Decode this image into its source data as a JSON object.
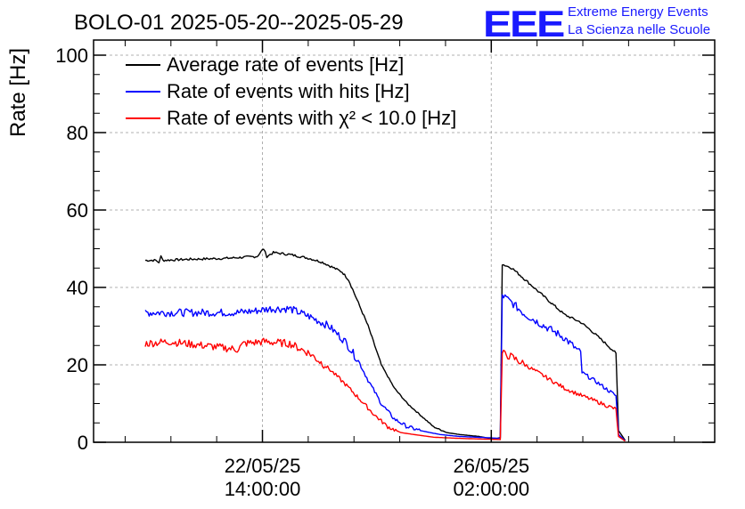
{
  "chart_data": {
    "type": "line",
    "title": "BOLO-01 2025-05-20--2025-05-29",
    "ylabel": "Rate [Hz]",
    "xlabel": "",
    "ylim": [
      0,
      100
    ],
    "xlim": [
      0,
      9.5
    ],
    "x_unit": "days since 2025-05-20 00:00:00",
    "yticks": [
      0,
      20,
      40,
      60,
      80,
      100
    ],
    "ytick_labels": [
      "0",
      "20",
      "40",
      "60",
      "80",
      "100"
    ],
    "xticks": [
      {
        "x": 2.583,
        "label_date": "22/05/25",
        "label_time": "14:00:00"
      },
      {
        "x": 6.083,
        "label_date": "26/05/25",
        "label_time": "02:00:00"
      }
    ],
    "grid": true,
    "legend_position": "top-left",
    "logo": {
      "letters": "EEE",
      "line1": "Extreme Energy Events",
      "line2": "La Scienza nelle Scuole"
    },
    "series": [
      {
        "name": "Average rate of events [Hz]",
        "color": "#000000",
        "points": [
          [
            0.79,
            47
          ],
          [
            0.95,
            47
          ],
          [
            1.0,
            46.5
          ],
          [
            1.03,
            48
          ],
          [
            1.06,
            47
          ],
          [
            1.5,
            47.3
          ],
          [
            2.0,
            47.5
          ],
          [
            2.3,
            47.8
          ],
          [
            2.5,
            48
          ],
          [
            2.6,
            50
          ],
          [
            2.65,
            48
          ],
          [
            2.75,
            49
          ],
          [
            3.0,
            48.5
          ],
          [
            3.3,
            47.5
          ],
          [
            3.5,
            46.5
          ],
          [
            3.8,
            44
          ],
          [
            3.9,
            42
          ],
          [
            4.05,
            36
          ],
          [
            4.2,
            30
          ],
          [
            4.4,
            20
          ],
          [
            4.6,
            14
          ],
          [
            4.8,
            10
          ],
          [
            5.0,
            7
          ],
          [
            5.2,
            4
          ],
          [
            5.4,
            2.5
          ],
          [
            5.6,
            2
          ],
          [
            5.9,
            1.5
          ],
          [
            6.12,
            0.8
          ],
          [
            6.22,
            1.2
          ],
          [
            6.25,
            46
          ],
          [
            6.4,
            45
          ],
          [
            6.6,
            42
          ],
          [
            6.8,
            39
          ],
          [
            7.0,
            36
          ],
          [
            7.2,
            33
          ],
          [
            7.45,
            31
          ],
          [
            7.6,
            29
          ],
          [
            7.8,
            26
          ],
          [
            7.99,
            23
          ],
          [
            8.03,
            3
          ],
          [
            8.13,
            0.5
          ]
        ]
      },
      {
        "name": "Rate of events with hits [Hz]",
        "color": "#0000ff",
        "points": [
          [
            0.79,
            33.5
          ],
          [
            1.15,
            33.5
          ],
          [
            2.2,
            33.5
          ],
          [
            2.5,
            34
          ],
          [
            2.7,
            34.5
          ],
          [
            3.0,
            34.5
          ],
          [
            3.3,
            32.5
          ],
          [
            3.6,
            30
          ],
          [
            3.85,
            26
          ],
          [
            4.05,
            21
          ],
          [
            4.2,
            16
          ],
          [
            4.4,
            10
          ],
          [
            4.6,
            6
          ],
          [
            4.8,
            4
          ],
          [
            5.0,
            3
          ],
          [
            5.3,
            2
          ],
          [
            5.6,
            1.5
          ],
          [
            6.0,
            1.2
          ],
          [
            6.22,
            1
          ],
          [
            6.25,
            38
          ],
          [
            6.4,
            36
          ],
          [
            6.6,
            33
          ],
          [
            6.8,
            31
          ],
          [
            7.0,
            29
          ],
          [
            7.2,
            27
          ],
          [
            7.45,
            23
          ],
          [
            7.47,
            18
          ],
          [
            7.7,
            15.5
          ],
          [
            7.99,
            12
          ],
          [
            8.03,
            2
          ],
          [
            8.13,
            0.4
          ]
        ]
      },
      {
        "name": "Rate of events with χ² < 10.0 [Hz]",
        "color": "#ff0000",
        "points": [
          [
            0.79,
            25.5
          ],
          [
            1.15,
            26
          ],
          [
            2.2,
            24
          ],
          [
            2.3,
            25.5
          ],
          [
            2.6,
            26
          ],
          [
            3.0,
            25.5
          ],
          [
            3.3,
            23
          ],
          [
            3.6,
            19
          ],
          [
            3.85,
            15
          ],
          [
            4.05,
            11.5
          ],
          [
            4.3,
            7
          ],
          [
            4.5,
            4
          ],
          [
            4.7,
            2.5
          ],
          [
            4.9,
            2
          ],
          [
            5.2,
            1.3
          ],
          [
            5.6,
            1
          ],
          [
            6.0,
            0.8
          ],
          [
            6.22,
            0.7
          ],
          [
            6.25,
            23
          ],
          [
            6.4,
            22
          ],
          [
            6.6,
            20
          ],
          [
            6.8,
            18
          ],
          [
            7.0,
            16
          ],
          [
            7.2,
            14
          ],
          [
            7.47,
            12
          ],
          [
            7.7,
            10.5
          ],
          [
            7.99,
            8.5
          ],
          [
            8.03,
            1.5
          ],
          [
            8.13,
            0.3
          ]
        ]
      }
    ]
  }
}
